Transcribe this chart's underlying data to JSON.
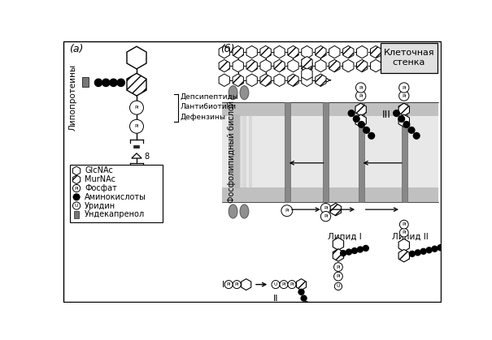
{
  "bg_color": "#ffffff",
  "label_a": "(а)",
  "label_b": "(б)",
  "side_label_left": "Липопротеины",
  "side_label_right_lines": [
    "Депсипептиды",
    "Лантибиотики",
    "Дефензины"
  ],
  "vertical_label": "Фосфолипидный бислой",
  "cell_wall_label": "Клеточная\nстенка",
  "label_III": "III",
  "label_II": "II",
  "label_I": "I",
  "label_lipid1": "Липид I",
  "label_lipid2": "Липид II",
  "mem_outer_color": "#b8b8b8",
  "mem_inner_color": "#e8e8e8",
  "mem_mid_color": "#d0d0d0",
  "head_color": "#909090",
  "bar_color": "#888888",
  "tall_bar_color": "#707070"
}
